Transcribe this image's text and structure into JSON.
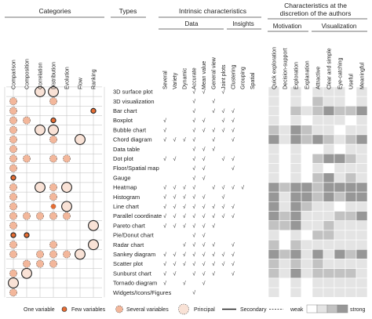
{
  "headers": {
    "categories": "Categories",
    "types": "Types",
    "intrinsic": "Intrinsic characteristics",
    "discretion_line1": "Characteristics at the",
    "discretion_line2": "discretion of the authors",
    "data": "Data",
    "insights": "Insights",
    "motivation": "Motivation",
    "visualization": "Visualization"
  },
  "categories": [
    "Comparison",
    "Composition",
    "Correlation",
    "Distribution",
    "Evolution",
    "Flow",
    "Ranking"
  ],
  "intrinsic_columns": [
    "Several",
    "Variety",
    "Dynamic",
    "Accurate",
    "Mean value",
    "General view",
    "Joint plots",
    "Clustering",
    "Grouping",
    "Spatial"
  ],
  "discretion_columns": [
    "Quick exploration",
    "Decision-support",
    "Exploration",
    "Explanation",
    "Attractive",
    "Clear and simple",
    "Eye-catching",
    "Useful",
    "Meaningful"
  ],
  "types": [
    "3D surface plot",
    "3D visualization",
    "Bar chart",
    "Boxplot",
    "Bubble chart",
    "Chord diagram",
    "Data table",
    "Dot plot",
    "Floor/Spatial map",
    "Gauge",
    "Heatmap",
    "Histogram",
    "Line chart",
    "Parallel coordinate",
    "Pareto chart",
    "Pie/Donut chart",
    "Radar chart",
    "Sankey diagram",
    "Scatter plot",
    "Sunburst chart",
    "Tornado diagram",
    "Widgets/Icons/Figures"
  ],
  "check_mark": "√",
  "category_marks": [
    [
      [
        2,
        "L",
        "S"
      ],
      [
        3,
        "L",
        "S"
      ]
    ],
    [
      [
        0,
        "M",
        "D"
      ],
      [
        3,
        "M",
        "D"
      ]
    ],
    [
      [
        0,
        "M",
        "D"
      ],
      [
        6,
        "S",
        "S"
      ]
    ],
    [
      [
        0,
        "M",
        "D"
      ],
      [
        1,
        "M",
        "D"
      ],
      [
        3,
        "S",
        "S"
      ]
    ],
    [
      [
        0,
        "M",
        "D"
      ],
      [
        2,
        "L",
        "S"
      ],
      [
        3,
        "L",
        "S"
      ]
    ],
    [
      [
        0,
        "M",
        "D"
      ],
      [
        3,
        "M",
        "D"
      ],
      [
        5,
        "L",
        "S"
      ]
    ],
    [
      [
        0,
        "M",
        "D"
      ]
    ],
    [
      [
        0,
        "M",
        "D"
      ],
      [
        1,
        "M",
        "D"
      ],
      [
        3,
        "M",
        "D"
      ],
      [
        4,
        "M",
        "D"
      ]
    ],
    [
      [
        0,
        "M",
        "D"
      ]
    ],
    [
      [
        0,
        "S",
        "S"
      ]
    ],
    [
      [
        0,
        "M",
        "D"
      ],
      [
        2,
        "L",
        "S"
      ],
      [
        3,
        "M",
        "D"
      ],
      [
        4,
        "L",
        "S"
      ]
    ],
    [
      [
        0,
        "M",
        "D"
      ],
      [
        3,
        "M",
        "D"
      ]
    ],
    [
      [
        0,
        "M",
        "D"
      ],
      [
        3,
        "S",
        "D"
      ],
      [
        4,
        "L",
        "S"
      ]
    ],
    [
      [
        0,
        "M",
        "D"
      ],
      [
        1,
        "M",
        "D"
      ],
      [
        2,
        "M",
        "D"
      ],
      [
        3,
        "M",
        "D"
      ],
      [
        4,
        "M",
        "D"
      ]
    ],
    [
      [
        0,
        "M",
        "D"
      ],
      [
        6,
        "L",
        "S"
      ]
    ],
    [
      [
        0,
        "S",
        "S"
      ],
      [
        1,
        "S",
        "S"
      ]
    ],
    [
      [
        0,
        "M",
        "D"
      ],
      [
        3,
        "M",
        "D"
      ],
      [
        6,
        "L",
        "S"
      ]
    ],
    [
      [
        0,
        "M",
        "D"
      ],
      [
        2,
        "M",
        "D"
      ],
      [
        3,
        "M",
        "D"
      ],
      [
        4,
        "M",
        "D"
      ],
      [
        5,
        "L",
        "S"
      ]
    ],
    [
      [
        1,
        "M",
        "D"
      ],
      [
        2,
        "M",
        "D"
      ],
      [
        3,
        "M",
        "D"
      ]
    ],
    [
      [
        0,
        "M",
        "D"
      ],
      [
        1,
        "L",
        "S"
      ]
    ],
    [
      [
        0,
        "L",
        "S"
      ]
    ],
    [
      [
        0,
        "M",
        "D"
      ]
    ]
  ],
  "intrinsic_checks": [
    [
      3,
      4,
      6
    ],
    [
      3,
      5
    ],
    [
      3,
      5,
      6,
      7
    ],
    [
      0,
      3,
      4,
      6,
      7
    ],
    [
      0,
      3,
      4,
      5,
      6,
      7
    ],
    [
      0,
      1,
      2,
      3,
      5,
      7
    ],
    [
      3,
      4,
      5
    ],
    [
      0,
      1,
      3,
      4,
      6,
      7
    ],
    [
      3,
      4,
      7
    ],
    [
      3,
      4
    ],
    [
      0,
      1,
      2,
      3,
      5,
      6,
      7,
      8
    ],
    [
      0,
      1,
      2,
      3,
      4,
      6
    ],
    [
      0,
      1,
      2,
      3,
      4,
      5,
      6,
      7
    ],
    [
      0,
      1,
      2,
      3,
      4,
      5,
      6,
      7
    ],
    [
      0,
      1,
      2,
      3,
      4,
      5
    ],
    [
      3,
      4
    ],
    [
      2,
      3,
      4,
      5,
      7
    ],
    [
      0,
      1,
      2,
      3,
      4,
      5,
      6,
      7
    ],
    [
      0,
      1,
      2,
      3,
      4,
      5,
      6,
      7
    ],
    [
      0,
      1,
      3,
      4,
      5,
      7
    ],
    [
      0,
      2,
      4
    ],
    [
      3
    ]
  ],
  "discretion_levels": [
    [
      1,
      0,
      1,
      0,
      1,
      1,
      1,
      0,
      1
    ],
    [
      1,
      0,
      1,
      0,
      2,
      1,
      1,
      0,
      1
    ],
    [
      1,
      0,
      2,
      1,
      2,
      3,
      2,
      2,
      3
    ],
    [
      1,
      0,
      1,
      0,
      1,
      1,
      1,
      0,
      1
    ],
    [
      2,
      1,
      3,
      2,
      1,
      1,
      0,
      1,
      1
    ],
    [
      3,
      1,
      3,
      2,
      3,
      2,
      1,
      2,
      3
    ],
    [
      1,
      0,
      1,
      0,
      0,
      1,
      0,
      1,
      1
    ],
    [
      1,
      0,
      1,
      0,
      2,
      3,
      3,
      2,
      1
    ],
    [
      1,
      0,
      1,
      0,
      1,
      0,
      1,
      1,
      1
    ],
    [
      1,
      0,
      1,
      0,
      2,
      3,
      1,
      2,
      1
    ],
    [
      3,
      2,
      3,
      3,
      2,
      3,
      3,
      3,
      3
    ],
    [
      3,
      1,
      3,
      3,
      2,
      3,
      2,
      3,
      3
    ],
    [
      3,
      1,
      3,
      2,
      1,
      1,
      0,
      1,
      1
    ],
    [
      3,
      2,
      3,
      1,
      1,
      1,
      2,
      2,
      3
    ],
    [
      2,
      2,
      3,
      1,
      1,
      2,
      1,
      1,
      1
    ],
    [
      1,
      0,
      1,
      0,
      2,
      2,
      1,
      1,
      1
    ],
    [
      2,
      0,
      2,
      1,
      1,
      1,
      1,
      1,
      1
    ],
    [
      3,
      2,
      3,
      1,
      3,
      1,
      3,
      2,
      3
    ],
    [
      2,
      1,
      2,
      1,
      2,
      1,
      1,
      1,
      1
    ],
    [
      2,
      1,
      3,
      1,
      2,
      2,
      2,
      2,
      1
    ],
    [
      1,
      0,
      1,
      0,
      1,
      1,
      1,
      1,
      1
    ],
    [
      1,
      0,
      1,
      0,
      1,
      1,
      1,
      1,
      1
    ]
  ],
  "colors": {
    "light": "#f9e2d6",
    "medium": "#f3b79b",
    "dark": "#e76d33",
    "grey_levels": [
      "#ffffff",
      "#e4e4e4",
      "#c2c2c2",
      "#979797"
    ]
  },
  "legend": {
    "one_variable": "One variable",
    "few_variables": "Few variables",
    "several_variables": "Several variables",
    "principal": "Principal",
    "secondary": "Secondary",
    "weak": "weak",
    "strong": "strong"
  }
}
